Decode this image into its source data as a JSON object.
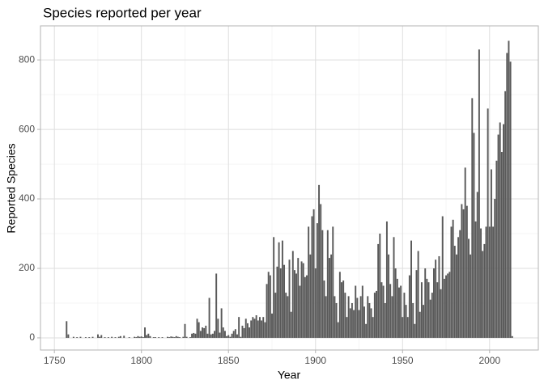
{
  "chart_data": {
    "type": "bar",
    "title": "Species reported per year",
    "x_label": "Year",
    "y_label": "Reported Species",
    "color": "#595959",
    "grid": true,
    "xlim": [
      1742,
      2028
    ],
    "ylim": [
      -35,
      898
    ],
    "xticks": [
      1750,
      1800,
      1850,
      1900,
      1950,
      2000
    ],
    "yticks": [
      0,
      200,
      400,
      600,
      800
    ],
    "x": [
      1757,
      1758,
      1761,
      1763,
      1765,
      1768,
      1770,
      1772,
      1775,
      1776,
      1777,
      1779,
      1781,
      1783,
      1785,
      1787,
      1788,
      1790,
      1793,
      1796,
      1797,
      1798,
      1799,
      1800,
      1801,
      1802,
      1803,
      1804,
      1805,
      1807,
      1808,
      1810,
      1812,
      1815,
      1816,
      1817,
      1818,
      1819,
      1820,
      1821,
      1822,
      1824,
      1825,
      1826,
      1828,
      1829,
      1830,
      1831,
      1832,
      1833,
      1834,
      1835,
      1836,
      1837,
      1838,
      1839,
      1840,
      1841,
      1842,
      1843,
      1844,
      1845,
      1846,
      1847,
      1848,
      1849,
      1850,
      1851,
      1852,
      1853,
      1854,
      1855,
      1856,
      1857,
      1858,
      1859,
      1860,
      1861,
      1862,
      1863,
      1864,
      1865,
      1866,
      1867,
      1868,
      1869,
      1870,
      1871,
      1872,
      1873,
      1874,
      1875,
      1876,
      1877,
      1878,
      1879,
      1880,
      1881,
      1882,
      1883,
      1884,
      1885,
      1886,
      1887,
      1888,
      1889,
      1890,
      1891,
      1892,
      1893,
      1894,
      1895,
      1896,
      1897,
      1898,
      1899,
      1900,
      1901,
      1902,
      1903,
      1904,
      1905,
      1906,
      1907,
      1908,
      1909,
      1910,
      1911,
      1912,
      1913,
      1914,
      1915,
      1916,
      1917,
      1918,
      1919,
      1920,
      1921,
      1922,
      1923,
      1924,
      1925,
      1926,
      1927,
      1928,
      1929,
      1930,
      1931,
      1932,
      1933,
      1934,
      1935,
      1936,
      1937,
      1938,
      1939,
      1940,
      1941,
      1942,
      1943,
      1944,
      1945,
      1946,
      1947,
      1948,
      1949,
      1950,
      1951,
      1952,
      1953,
      1954,
      1955,
      1956,
      1957,
      1958,
      1959,
      1960,
      1961,
      1962,
      1963,
      1964,
      1965,
      1966,
      1967,
      1968,
      1969,
      1970,
      1971,
      1972,
      1973,
      1974,
      1975,
      1976,
      1977,
      1978,
      1979,
      1980,
      1981,
      1982,
      1983,
      1984,
      1985,
      1986,
      1987,
      1988,
      1989,
      1990,
      1991,
      1992,
      1993,
      1994,
      1995,
      1996,
      1997,
      1998,
      1999,
      2000,
      2001,
      2002,
      2003,
      2004,
      2005,
      2006,
      2007,
      2008,
      2009,
      2010,
      2011,
      2012,
      2013
    ],
    "values": [
      48,
      10,
      3,
      2,
      3,
      2,
      2,
      3,
      10,
      3,
      8,
      2,
      2,
      3,
      2,
      3,
      5,
      6,
      2,
      3,
      2,
      5,
      3,
      4,
      2,
      30,
      8,
      12,
      5,
      2,
      2,
      2,
      2,
      3,
      2,
      4,
      3,
      2,
      5,
      3,
      2,
      3,
      40,
      3,
      2,
      12,
      14,
      12,
      55,
      45,
      20,
      30,
      28,
      35,
      12,
      115,
      10,
      12,
      20,
      185,
      55,
      15,
      85,
      30,
      20,
      5,
      8,
      3,
      12,
      20,
      25,
      10,
      60,
      3,
      35,
      28,
      55,
      42,
      30,
      50,
      60,
      55,
      65,
      50,
      60,
      50,
      60,
      45,
      155,
      190,
      180,
      70,
      290,
      130,
      205,
      275,
      200,
      280,
      210,
      130,
      120,
      225,
      75,
      250,
      195,
      185,
      230,
      150,
      220,
      215,
      175,
      180,
      320,
      240,
      350,
      370,
      200,
      330,
      440,
      385,
      310,
      165,
      120,
      310,
      230,
      240,
      320,
      120,
      100,
      45,
      190,
      160,
      165,
      130,
      60,
      120,
      85,
      100,
      80,
      150,
      115,
      80,
      120,
      150,
      90,
      40,
      120,
      100,
      85,
      60,
      130,
      135,
      270,
      300,
      160,
      150,
      100,
      335,
      240,
      155,
      120,
      290,
      200,
      170,
      145,
      150,
      60,
      130,
      95,
      60,
      180,
      280,
      100,
      40,
      195,
      250,
      75,
      160,
      95,
      200,
      170,
      160,
      110,
      130,
      200,
      225,
      160,
      235,
      140,
      350,
      170,
      180,
      185,
      190,
      320,
      340,
      265,
      240,
      290,
      310,
      385,
      370,
      490,
      380,
      285,
      240,
      690,
      590,
      335,
      420,
      830,
      315,
      250,
      270,
      320,
      660,
      320,
      485,
      320,
      400,
      510,
      585,
      620,
      535,
      615,
      710,
      820,
      855,
      795,
      5
    ]
  }
}
